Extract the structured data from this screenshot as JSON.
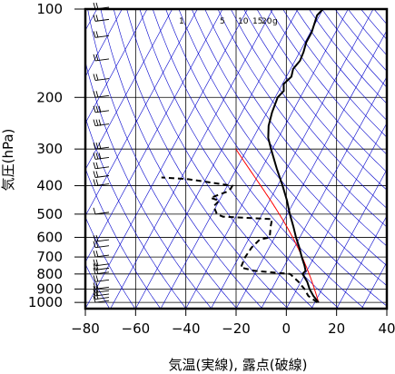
{
  "chart_data": {
    "type": "line",
    "subtype": "skew-T log-P diagram",
    "xlabel": "気温(実線), 露点(破線)",
    "ylabel": "気圧(hPa)",
    "xlim": [
      -80,
      40
    ],
    "ylim": [
      1050,
      100
    ],
    "yscale": "log",
    "x_ticks": [
      -80,
      -60,
      -40,
      -20,
      0,
      20,
      40
    ],
    "y_ticks": [
      100,
      200,
      300,
      400,
      500,
      600,
      700,
      800,
      900,
      1000
    ],
    "y_tick_labels": [
      "100",
      "200",
      "300",
      "400",
      "500",
      "600",
      "700",
      "800",
      "900",
      "1000"
    ],
    "grid": true,
    "mixing_ratio_labels": [
      "1",
      "5",
      "10",
      "15",
      "20",
      "g"
    ],
    "colors": {
      "isotherm": "#0000cc",
      "adiabat": "#0000cc",
      "moist_adiabat": "#ff0000",
      "profile": "#000000"
    },
    "series": [
      {
        "style": "solid",
        "points": [
          {
            "p": 1000,
            "t": 11.5
          },
          {
            "p": 950,
            "t": 8
          },
          {
            "p": 900,
            "t": 5
          },
          {
            "p": 850,
            "t": 2.5
          },
          {
            "p": 800,
            "t": -1
          },
          {
            "p": 780,
            "t": -0.5
          },
          {
            "p": 750,
            "t": -2
          },
          {
            "p": 700,
            "t": -5
          },
          {
            "p": 650,
            "t": -8
          },
          {
            "p": 600,
            "t": -11.5
          },
          {
            "p": 550,
            "t": -15
          },
          {
            "p": 500,
            "t": -19
          },
          {
            "p": 450,
            "t": -23
          },
          {
            "p": 400,
            "t": -28
          },
          {
            "p": 350,
            "t": -34
          },
          {
            "p": 300,
            "t": -40.5
          },
          {
            "p": 275,
            "t": -44
          },
          {
            "p": 250,
            "t": -46.5
          },
          {
            "p": 225,
            "t": -48
          },
          {
            "p": 200,
            "t": -49
          },
          {
            "p": 190,
            "t": -48
          },
          {
            "p": 180,
            "t": -49.5
          },
          {
            "p": 170,
            "t": -48
          },
          {
            "p": 160,
            "t": -49
          },
          {
            "p": 150,
            "t": -48
          },
          {
            "p": 140,
            "t": -48.5
          },
          {
            "p": 130,
            "t": -49.5
          },
          {
            "p": 120,
            "t": -49.5
          },
          {
            "p": 110,
            "t": -50.5
          },
          {
            "p": 105,
            "t": -51
          },
          {
            "p": 100,
            "t": -50
          }
        ]
      },
      {
        "style": "dashed",
        "points": [
          {
            "p": 1000,
            "t": 11
          },
          {
            "p": 950,
            "t": 6
          },
          {
            "p": 900,
            "t": 3
          },
          {
            "p": 850,
            "t": -1
          },
          {
            "p": 800,
            "t": -6
          },
          {
            "p": 780,
            "t": -21
          },
          {
            "p": 760,
            "t": -27
          },
          {
            "p": 700,
            "t": -27.5
          },
          {
            "p": 650,
            "t": -27
          },
          {
            "p": 610,
            "t": -25.5
          },
          {
            "p": 600,
            "t": -22
          },
          {
            "p": 550,
            "t": -24
          },
          {
            "p": 520,
            "t": -25
          },
          {
            "p": 510,
            "t": -45
          },
          {
            "p": 500,
            "t": -48
          },
          {
            "p": 470,
            "t": -51
          },
          {
            "p": 450,
            "t": -50
          },
          {
            "p": 440,
            "t": -54
          },
          {
            "p": 420,
            "t": -49
          },
          {
            "p": 410,
            "t": -48
          },
          {
            "p": 400,
            "t": -48
          },
          {
            "p": 380,
            "t": -67
          },
          {
            "p": 375,
            "t": -78
          }
        ]
      }
    ],
    "wind_barbs": [
      {
        "p": 1000,
        "barbs": 1
      },
      {
        "p": 975,
        "barbs": 2
      },
      {
        "p": 950,
        "barbs": 2
      },
      {
        "p": 925,
        "barbs": 2
      },
      {
        "p": 900,
        "barbs": 2
      },
      {
        "p": 850,
        "barbs": 2
      },
      {
        "p": 800,
        "barbs": 2
      },
      {
        "p": 775,
        "barbs": 2
      },
      {
        "p": 750,
        "barbs": 2
      },
      {
        "p": 700,
        "barbs": 2
      },
      {
        "p": 650,
        "barbs": 2
      },
      {
        "p": 620,
        "barbs": 2
      },
      {
        "p": 500,
        "barbs": 1
      },
      {
        "p": 400,
        "barbs": 2
      },
      {
        "p": 375,
        "barbs": 2
      },
      {
        "p": 350,
        "barbs": 2
      },
      {
        "p": 325,
        "barbs": 3
      },
      {
        "p": 300,
        "barbs": 3
      },
      {
        "p": 250,
        "barbs": 3
      },
      {
        "p": 225,
        "barbs": 3
      },
      {
        "p": 200,
        "barbs": 2
      },
      {
        "p": 175,
        "barbs": 2
      },
      {
        "p": 150,
        "barbs": 2
      },
      {
        "p": 125,
        "barbs": 2
      },
      {
        "p": 110,
        "barbs": 2
      },
      {
        "p": 100,
        "barbs": 2
      }
    ]
  }
}
